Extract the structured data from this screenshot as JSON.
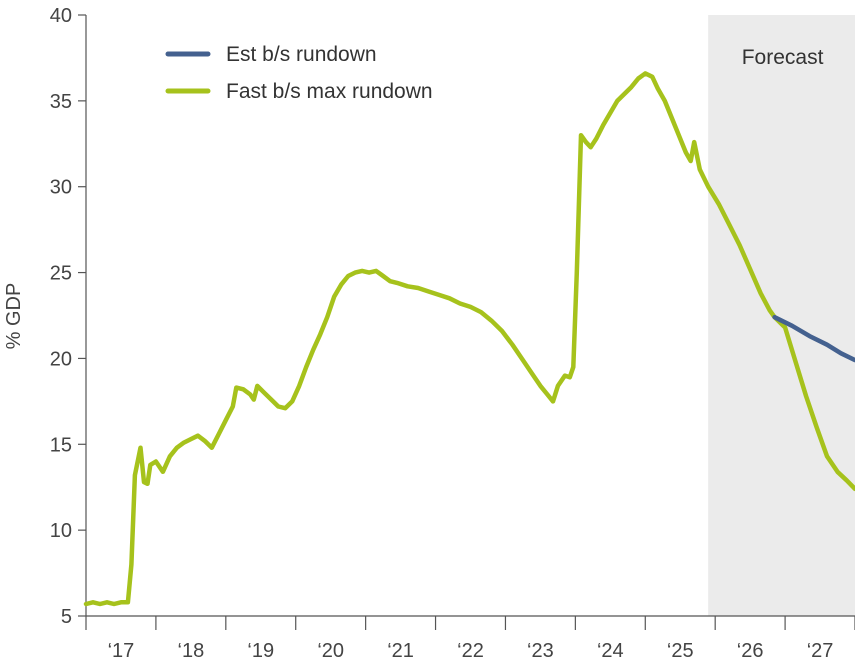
{
  "chart_data": {
    "type": "line",
    "xlabel": "",
    "ylabel": "% GDP",
    "ylim": [
      5,
      40
    ],
    "yticks": [
      5,
      10,
      15,
      20,
      25,
      30,
      35,
      40
    ],
    "x_range": [
      2016.5,
      2027.5
    ],
    "xticks": [
      {
        "label": "‘17",
        "year": 2017
      },
      {
        "label": "‘18",
        "year": 2018
      },
      {
        "label": "‘19",
        "year": 2019
      },
      {
        "label": "‘20",
        "year": 2020
      },
      {
        "label": "‘21",
        "year": 2021
      },
      {
        "label": "‘22",
        "year": 2022
      },
      {
        "label": "‘23",
        "year": 2023
      },
      {
        "label": "‘24",
        "year": 2024
      },
      {
        "label": "‘25",
        "year": 2025
      },
      {
        "label": "‘26",
        "year": 2026
      },
      {
        "label": "‘27",
        "year": 2027
      }
    ],
    "grid": false,
    "legend_position": "top-left",
    "forecast_region": {
      "label": "Forecast",
      "start": 2025.4,
      "end": 2027.5,
      "color": "#ebebeb"
    },
    "series": [
      {
        "name": "Est b/s rundown",
        "color": "#44618f",
        "points": [
          [
            2026.35,
            22.4
          ],
          [
            2026.6,
            21.9
          ],
          [
            2026.85,
            21.3
          ],
          [
            2027.1,
            20.8
          ],
          [
            2027.3,
            20.3
          ],
          [
            2027.5,
            19.9
          ]
        ]
      },
      {
        "name": "Fast b/s max rundown",
        "color": "#a6c21c",
        "points": [
          [
            2016.5,
            5.7
          ],
          [
            2016.6,
            5.8
          ],
          [
            2016.7,
            5.7
          ],
          [
            2016.8,
            5.8
          ],
          [
            2016.9,
            5.7
          ],
          [
            2017.0,
            5.8
          ],
          [
            2017.1,
            5.8
          ],
          [
            2017.15,
            8.0
          ],
          [
            2017.2,
            13.2
          ],
          [
            2017.28,
            14.8
          ],
          [
            2017.33,
            12.8
          ],
          [
            2017.38,
            12.7
          ],
          [
            2017.42,
            13.8
          ],
          [
            2017.5,
            14.0
          ],
          [
            2017.6,
            13.4
          ],
          [
            2017.7,
            14.3
          ],
          [
            2017.8,
            14.8
          ],
          [
            2017.9,
            15.1
          ],
          [
            2018.0,
            15.3
          ],
          [
            2018.1,
            15.5
          ],
          [
            2018.2,
            15.2
          ],
          [
            2018.3,
            14.8
          ],
          [
            2018.4,
            15.6
          ],
          [
            2018.5,
            16.4
          ],
          [
            2018.6,
            17.2
          ],
          [
            2018.65,
            18.3
          ],
          [
            2018.75,
            18.2
          ],
          [
            2018.85,
            17.9
          ],
          [
            2018.9,
            17.6
          ],
          [
            2018.95,
            18.4
          ],
          [
            2019.05,
            18.0
          ],
          [
            2019.15,
            17.6
          ],
          [
            2019.25,
            17.2
          ],
          [
            2019.35,
            17.1
          ],
          [
            2019.45,
            17.5
          ],
          [
            2019.55,
            18.4
          ],
          [
            2019.65,
            19.5
          ],
          [
            2019.75,
            20.5
          ],
          [
            2019.85,
            21.4
          ],
          [
            2019.95,
            22.4
          ],
          [
            2020.05,
            23.6
          ],
          [
            2020.15,
            24.3
          ],
          [
            2020.25,
            24.8
          ],
          [
            2020.35,
            25.0
          ],
          [
            2020.45,
            25.1
          ],
          [
            2020.55,
            25.0
          ],
          [
            2020.65,
            25.1
          ],
          [
            2020.75,
            24.8
          ],
          [
            2020.85,
            24.5
          ],
          [
            2020.95,
            24.4
          ],
          [
            2021.1,
            24.2
          ],
          [
            2021.25,
            24.1
          ],
          [
            2021.4,
            23.9
          ],
          [
            2021.55,
            23.7
          ],
          [
            2021.7,
            23.5
          ],
          [
            2021.85,
            23.2
          ],
          [
            2022.0,
            23.0
          ],
          [
            2022.15,
            22.7
          ],
          [
            2022.3,
            22.2
          ],
          [
            2022.45,
            21.6
          ],
          [
            2022.6,
            20.8
          ],
          [
            2022.75,
            19.9
          ],
          [
            2022.9,
            19.0
          ],
          [
            2023.0,
            18.4
          ],
          [
            2023.1,
            17.9
          ],
          [
            2023.18,
            17.5
          ],
          [
            2023.25,
            18.4
          ],
          [
            2023.35,
            19.0
          ],
          [
            2023.42,
            18.9
          ],
          [
            2023.47,
            19.5
          ],
          [
            2023.52,
            25.0
          ],
          [
            2023.58,
            33.0
          ],
          [
            2023.65,
            32.6
          ],
          [
            2023.72,
            32.3
          ],
          [
            2023.8,
            32.8
          ],
          [
            2023.9,
            33.6
          ],
          [
            2024.0,
            34.3
          ],
          [
            2024.1,
            35.0
          ],
          [
            2024.2,
            35.4
          ],
          [
            2024.3,
            35.8
          ],
          [
            2024.4,
            36.3
          ],
          [
            2024.5,
            36.6
          ],
          [
            2024.6,
            36.4
          ],
          [
            2024.68,
            35.7
          ],
          [
            2024.78,
            35.0
          ],
          [
            2024.88,
            34.0
          ],
          [
            2024.98,
            33.0
          ],
          [
            2025.08,
            32.0
          ],
          [
            2025.15,
            31.5
          ],
          [
            2025.2,
            32.6
          ],
          [
            2025.28,
            31.0
          ],
          [
            2025.4,
            30.0
          ],
          [
            2025.55,
            29.0
          ],
          [
            2025.7,
            27.8
          ],
          [
            2025.85,
            26.6
          ],
          [
            2026.0,
            25.2
          ],
          [
            2026.15,
            23.8
          ],
          [
            2026.28,
            22.8
          ],
          [
            2026.35,
            22.4
          ],
          [
            2026.5,
            21.8
          ],
          [
            2026.65,
            19.8
          ],
          [
            2026.8,
            17.8
          ],
          [
            2026.95,
            16.0
          ],
          [
            2027.1,
            14.3
          ],
          [
            2027.25,
            13.4
          ],
          [
            2027.38,
            12.9
          ],
          [
            2027.5,
            12.4
          ]
        ]
      }
    ]
  }
}
